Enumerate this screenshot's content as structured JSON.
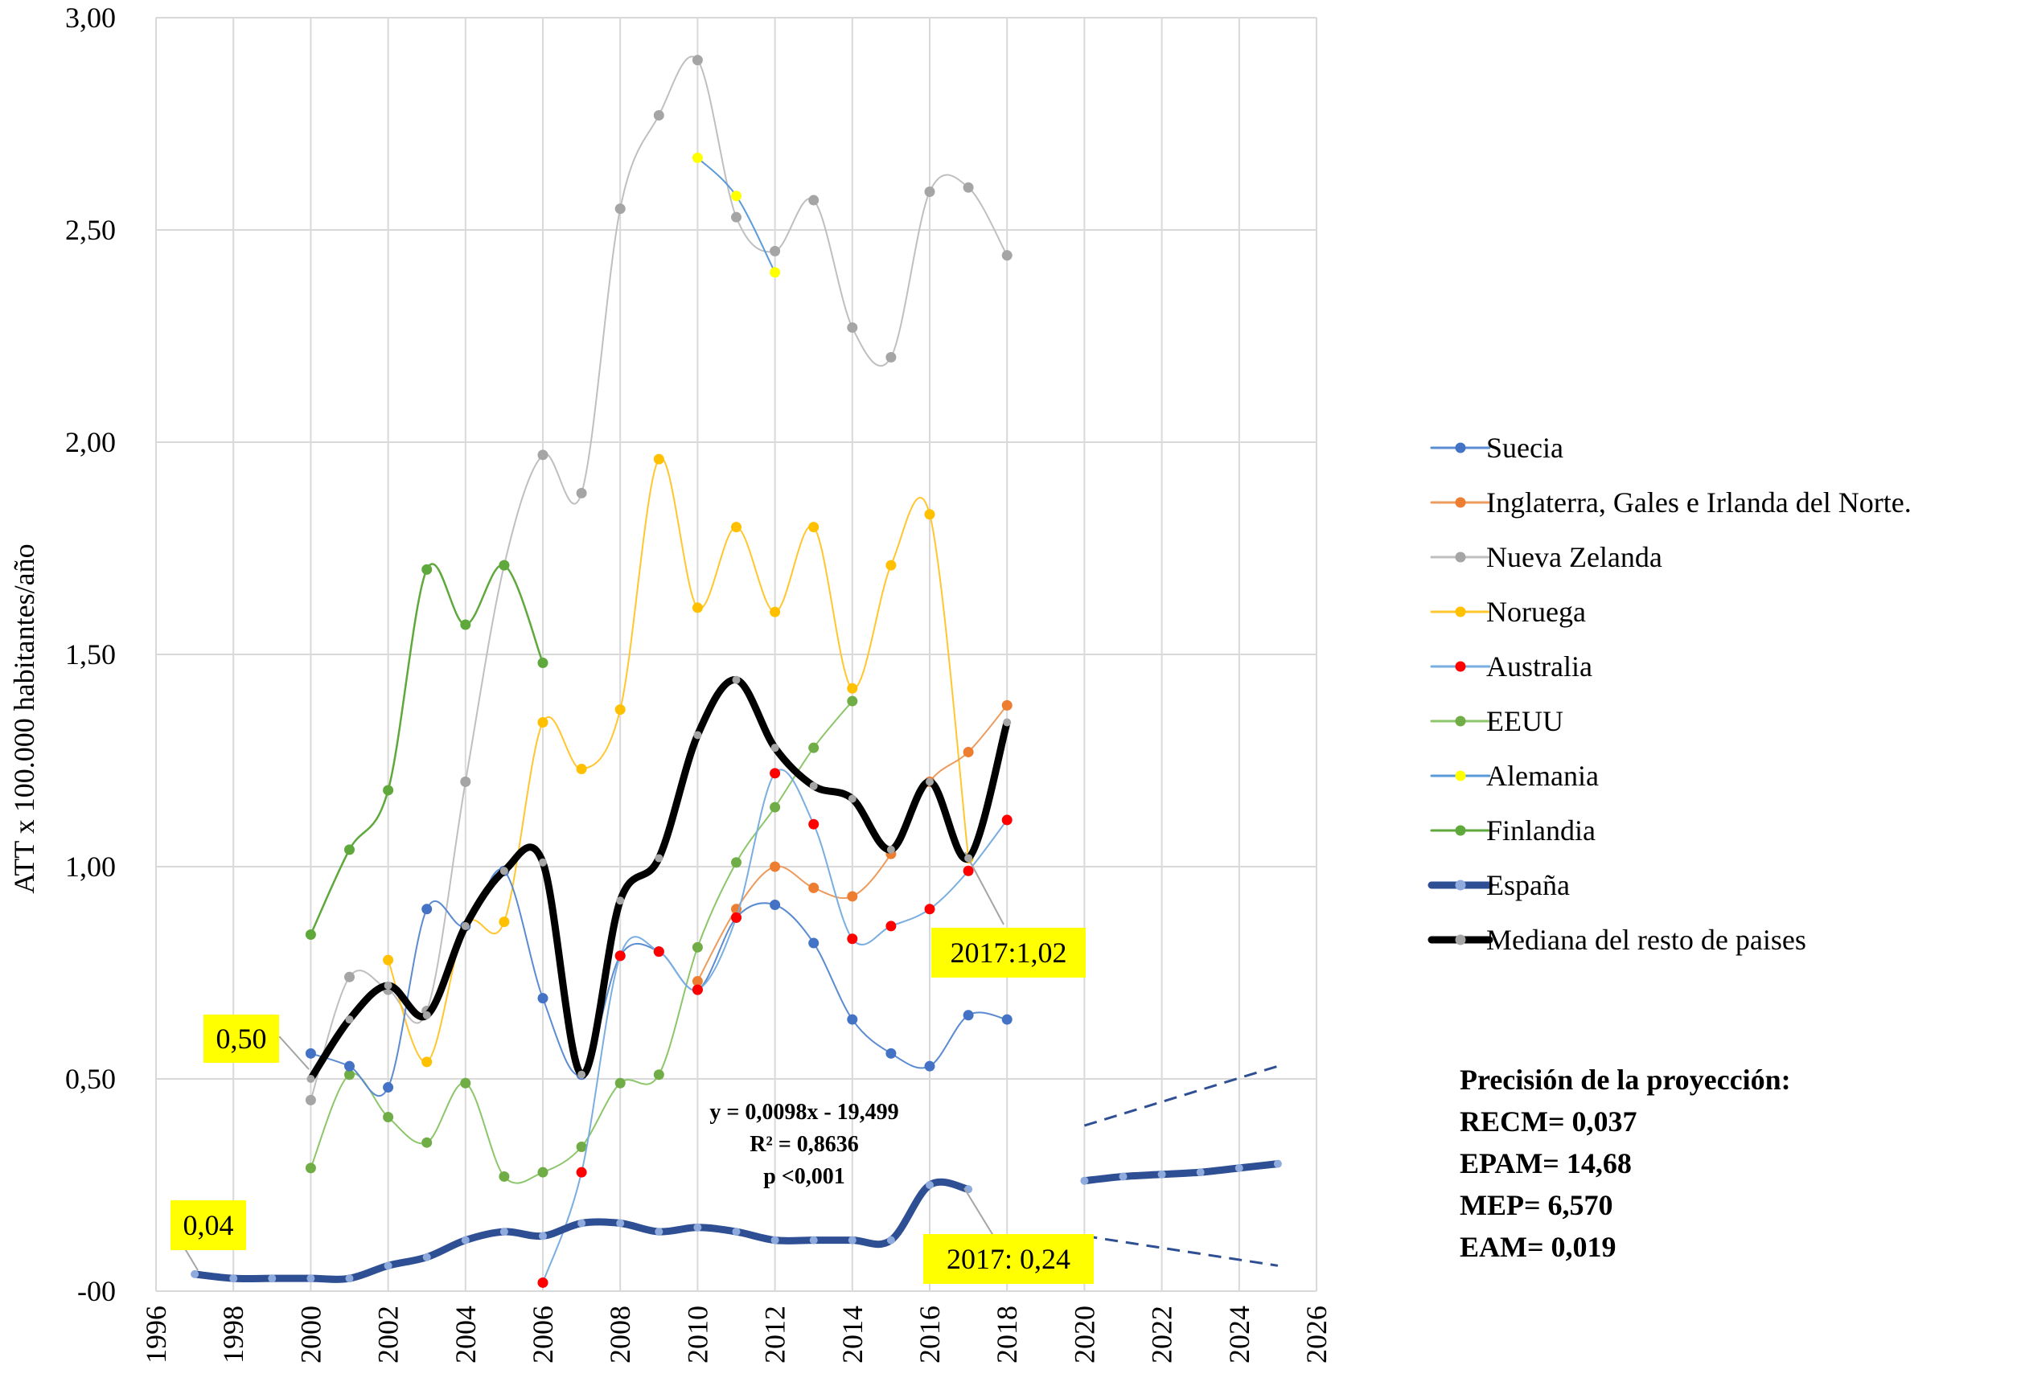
{
  "chart_data": {
    "type": "line",
    "title": "",
    "xlabel": "",
    "ylabel": "ATT x 100.000 habitantes/año",
    "xlim": [
      1996,
      2026
    ],
    "ylim": [
      0,
      3
    ],
    "x_ticks": [
      "1996",
      "1998",
      "2000",
      "2002",
      "2004",
      "2006",
      "2008",
      "2010",
      "2012",
      "2014",
      "2016",
      "2018",
      "2020",
      "2022",
      "2024",
      "2026"
    ],
    "y_ticks": [
      "-00",
      "0,50",
      "1,00",
      "1,50",
      "2,00",
      "2,50",
      "3,00"
    ],
    "grid": true,
    "legend_position": "right",
    "series": [
      {
        "name": "Suecia",
        "color": "#5b8bd0",
        "marker": "#4472c4",
        "width": 2,
        "x": [
          2000,
          2001,
          2002,
          2003,
          2004,
          2005,
          2006,
          2007,
          2008,
          2009,
          2010,
          2011,
          2012,
          2013,
          2014,
          2015,
          2016,
          2017,
          2018
        ],
        "y": [
          0.56,
          0.53,
          0.48,
          0.9,
          0.86,
          0.99,
          0.69,
          0.51,
          0.79,
          0.8,
          0.71,
          0.88,
          0.91,
          0.82,
          0.64,
          0.56,
          0.53,
          0.65,
          0.64
        ]
      },
      {
        "name": "Inglaterra, Gales e Irlanda del Norte.",
        "color": "#ed9b5c",
        "marker": "#ed7d31",
        "width": 2,
        "x": [
          2010,
          2011,
          2012,
          2013,
          2014,
          2015,
          2016,
          2017,
          2018
        ],
        "y": [
          0.73,
          0.9,
          1.0,
          0.95,
          0.93,
          1.03,
          1.2,
          1.27,
          1.38
        ]
      },
      {
        "name": "Nueva Zelanda",
        "color": "#bfbfbf",
        "marker": "#a5a5a5",
        "width": 2,
        "x": [
          2000,
          2001,
          2002,
          2003,
          2004,
          2005,
          2006,
          2007,
          2008,
          2009,
          2010,
          2011,
          2012,
          2013,
          2014,
          2015,
          2016,
          2017,
          2018
        ],
        "y": [
          0.45,
          0.74,
          0.71,
          0.66,
          1.2,
          1.71,
          1.97,
          1.88,
          2.55,
          2.77,
          2.9,
          2.53,
          2.45,
          2.57,
          2.27,
          2.2,
          2.59,
          2.6,
          2.44
        ]
      },
      {
        "name": "Noruega",
        "color": "#ffc62e",
        "marker": "#ffc000",
        "width": 2,
        "x": [
          2002,
          2003,
          2004,
          2005,
          2006,
          2007,
          2008,
          2009,
          2010,
          2011,
          2012,
          2013,
          2014,
          2015,
          2016,
          2017
        ],
        "y": [
          0.78,
          0.54,
          0.86,
          0.87,
          1.34,
          1.23,
          1.37,
          1.96,
          1.61,
          1.8,
          1.6,
          1.8,
          1.42,
          1.71,
          1.83,
          1.02
        ]
      },
      {
        "name": "Australia",
        "color": "#7aaee0",
        "marker": "#ff0000",
        "width": 2,
        "x": [
          2006,
          2007,
          2008,
          2009,
          2010,
          2011,
          2012,
          2013,
          2014,
          2015,
          2016,
          2017,
          2018
        ],
        "y": [
          0.02,
          0.28,
          0.79,
          0.8,
          0.71,
          0.88,
          1.22,
          1.1,
          0.83,
          0.86,
          0.9,
          0.99,
          1.11
        ]
      },
      {
        "name": "EEUU",
        "color": "#8cc66a",
        "marker": "#70ad47",
        "width": 2,
        "x": [
          2000,
          2001,
          2002,
          2003,
          2004,
          2005,
          2006,
          2007,
          2008,
          2009,
          2010,
          2011,
          2012,
          2013,
          2014
        ],
        "y": [
          0.29,
          0.51,
          0.41,
          0.35,
          0.49,
          0.27,
          0.28,
          0.34,
          0.49,
          0.51,
          0.81,
          1.01,
          1.14,
          1.28,
          1.39
        ]
      },
      {
        "name": "Alemania",
        "color": "#5a9ad8",
        "marker": "#ffff00",
        "width": 2,
        "x": [
          2010,
          2011,
          2012
        ],
        "y": [
          2.67,
          2.58,
          2.4
        ]
      },
      {
        "name": "Finlandia",
        "color": "#5fa83c",
        "marker": "#5fa83c",
        "width": 2.5,
        "x": [
          2000,
          2001,
          2002,
          2003,
          2004,
          2005,
          2006
        ],
        "y": [
          0.84,
          1.04,
          1.18,
          1.7,
          1.57,
          1.71,
          1.48
        ]
      },
      {
        "name": "España",
        "color": "#2e4f93",
        "marker": "#8faadc",
        "width": 9,
        "x": [
          1997,
          1998,
          1999,
          2000,
          2001,
          2002,
          2003,
          2004,
          2005,
          2006,
          2007,
          2008,
          2009,
          2010,
          2011,
          2012,
          2013,
          2014,
          2015,
          2016,
          2017
        ],
        "y": [
          0.04,
          0.03,
          0.03,
          0.03,
          0.03,
          0.06,
          0.08,
          0.12,
          0.14,
          0.13,
          0.16,
          0.16,
          0.14,
          0.15,
          0.14,
          0.12,
          0.12,
          0.12,
          0.12,
          0.25,
          0.24
        ]
      },
      {
        "name": "Mediana del resto de paises",
        "color": "#000000",
        "marker": "#a5a5a5",
        "width": 9,
        "x": [
          2000,
          2001,
          2002,
          2003,
          2004,
          2005,
          2006,
          2007,
          2008,
          2009,
          2010,
          2011,
          2012,
          2013,
          2014,
          2015,
          2016,
          2017,
          2018
        ],
        "y": [
          0.5,
          0.64,
          0.72,
          0.65,
          0.86,
          0.99,
          1.01,
          0.51,
          0.92,
          1.02,
          1.31,
          1.44,
          1.28,
          1.19,
          1.16,
          1.04,
          1.2,
          1.02,
          1.34
        ]
      }
    ],
    "projection": {
      "x": [
        2020,
        2021,
        2022,
        2023,
        2024,
        2025
      ],
      "y": [
        0.26,
        0.27,
        0.275,
        0.28,
        0.29,
        0.3
      ],
      "upper": {
        "x": [
          2020,
          2025
        ],
        "y": [
          0.39,
          0.53
        ]
      },
      "lower": {
        "x": [
          2020,
          2025
        ],
        "y": [
          0.13,
          0.06
        ]
      },
      "color": "#2e4f93"
    },
    "annotations": {
      "label_050": "0,50",
      "label_004": "0,04",
      "label_2017_mediana": "2017:1,02",
      "label_2017_espana": "2017: 0,24",
      "regression": [
        "y = 0,0098x - 19,499",
        "R² = 0,8636",
        "p <0,001"
      ],
      "highlight_color": "#ffff00"
    },
    "accuracy": {
      "title": "Precisión de la proyección:",
      "lines": [
        "RECM= 0,037",
        "EPAM= 14,68",
        "MEP= 6,570",
        "EAM= 0,019"
      ]
    }
  }
}
